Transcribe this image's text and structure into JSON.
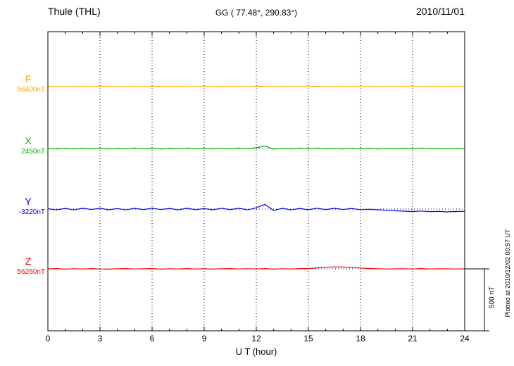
{
  "header": {
    "station": "Thule (THL)",
    "coords": "GG ( 77.48°, 290.83°)",
    "date": "2010/11/01"
  },
  "xaxis": {
    "title": "U T (hour)",
    "ticks": [
      0,
      3,
      6,
      9,
      12,
      15,
      18,
      21,
      24
    ],
    "min": 0,
    "max": 24
  },
  "scalebar": {
    "label": "500 nT",
    "nT": 500
  },
  "footer_note": "Plotted at 2010/12/02 00:57 UT",
  "chart_data": {
    "type": "line",
    "title": "Thule (THL) magnetogram 2010/11/01",
    "xlabel": "U T (hour)",
    "x_range": [
      0,
      24
    ],
    "sample_step_hours": 0.5,
    "scalebar_nT": 500,
    "grid": "dotted vertical every 3 hours, dotted horizontal baselines",
    "series": [
      {
        "name": "F",
        "label": "F",
        "baseline_label": "56400nT",
        "baseline_nT": 56400,
        "color": "#ffa500",
        "offsets_nT": [
          0,
          1,
          -1,
          0,
          1,
          -1,
          2,
          0,
          -1,
          1,
          0,
          -1,
          1,
          2,
          -1,
          0,
          1,
          -1,
          0,
          1,
          -2,
          0,
          1,
          -1,
          2,
          1,
          -1,
          0,
          1,
          -1,
          0,
          2,
          -1,
          1,
          0,
          -1,
          1,
          0,
          -1,
          1,
          -1,
          0,
          1,
          -1,
          0,
          1,
          -1,
          0,
          0
        ]
      },
      {
        "name": "X",
        "label": "X",
        "baseline_label": "2450nT",
        "baseline_nT": 2450,
        "color": "#00b400",
        "offsets_nT": [
          0,
          -4,
          3,
          -3,
          4,
          -3,
          2,
          -4,
          3,
          -2,
          4,
          -3,
          2,
          -4,
          3,
          -3,
          4,
          -2,
          3,
          -4,
          2,
          -3,
          4,
          -2,
          6,
          20,
          -5,
          3,
          -4,
          3,
          -3,
          4,
          -3,
          2,
          -4,
          3,
          -2,
          3,
          -4,
          2,
          -3,
          3,
          -2,
          4,
          -3,
          2,
          -3,
          2,
          0
        ]
      },
      {
        "name": "Y",
        "label": "Y",
        "baseline_label": "-3220nT",
        "baseline_nT": -3220,
        "color": "#0000ff",
        "offsets_nT": [
          2,
          -6,
          5,
          -7,
          6,
          -4,
          7,
          -6,
          4,
          -7,
          6,
          -5,
          7,
          -4,
          5,
          -7,
          6,
          -5,
          4,
          -6,
          7,
          -5,
          6,
          -7,
          10,
          38,
          -12,
          6,
          -7,
          5,
          -6,
          7,
          -5,
          6,
          -4,
          5,
          -7,
          -2,
          -6,
          -10,
          -14,
          -17,
          -20,
          -16,
          -21,
          -19,
          -23,
          -20,
          -18
        ]
      },
      {
        "name": "Z",
        "label": "Z",
        "baseline_label": "56260nT",
        "baseline_nT": 56260,
        "color": "#ff0000",
        "offsets_nT": [
          0,
          2,
          -2,
          1,
          -1,
          2,
          -1,
          -2,
          1,
          2,
          -1,
          1,
          2,
          -2,
          1,
          -1,
          2,
          -1,
          1,
          -2,
          1,
          2,
          -1,
          1,
          -1,
          2,
          -2,
          1,
          -1,
          2,
          3,
          8,
          13,
          16,
          15,
          12,
          7,
          3,
          1,
          -1,
          0,
          1,
          -1,
          2,
          -1,
          1,
          0,
          -1,
          0
        ]
      }
    ]
  }
}
